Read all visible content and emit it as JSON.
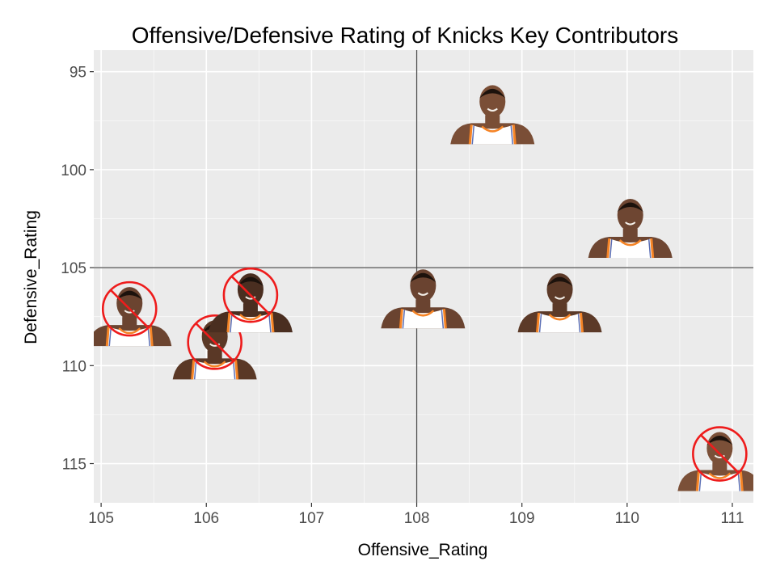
{
  "chart_data": {
    "type": "scatter",
    "title": "Offensive/Defensive Rating of Knicks Key Contributors",
    "xlabel": "Offensive_Rating",
    "ylabel": "Defensive_Rating",
    "xlim": [
      104.93,
      111.2
    ],
    "ylim": [
      117,
      93.9
    ],
    "y_reversed": true,
    "x_ticks": [
      "105",
      "106",
      "107",
      "108",
      "109",
      "110",
      "111"
    ],
    "y_ticks": [
      "95",
      "100",
      "105",
      "110",
      "115"
    ],
    "reference_lines": {
      "x": 108,
      "y": 105
    },
    "grid": true,
    "points": [
      {
        "x": 105.27,
        "y": 107.6,
        "excluded": true
      },
      {
        "x": 106.08,
        "y": 109.3,
        "excluded": true
      },
      {
        "x": 106.42,
        "y": 106.9,
        "excluded": true
      },
      {
        "x": 108.06,
        "y": 106.7,
        "excluded": false
      },
      {
        "x": 108.72,
        "y": 97.3,
        "excluded": false
      },
      {
        "x": 109.36,
        "y": 106.9,
        "excluded": false
      },
      {
        "x": 110.03,
        "y": 103.1,
        "excluded": false
      },
      {
        "x": 110.88,
        "y": 115.0,
        "excluded": true
      }
    ],
    "colors": {
      "panel": "#ebebeb",
      "grid_major": "#ffffff",
      "reference_line": "#4d4d4d",
      "exclusion_mark": "#ee1c1c",
      "jersey": "#ffffff",
      "jersey_trim": "#f58426",
      "jersey_trim_inner": "#5b6fb5"
    },
    "point_icon": "player-headshot-icon",
    "exclusion_icon": "prohibited-icon"
  }
}
